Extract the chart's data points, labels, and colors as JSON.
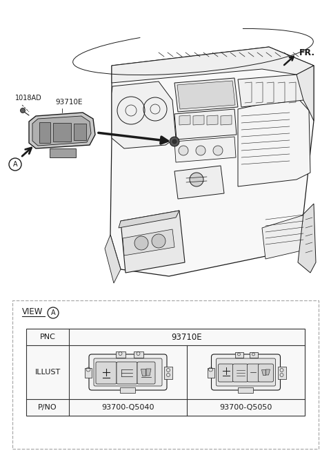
{
  "bg_color": "#ffffff",
  "line_color": "#1a1a1a",
  "label_1018AD": "1018AD",
  "label_93710E_top": "93710E",
  "label_FR": "FR.",
  "label_VIEW": "VIEW",
  "label_A": "A",
  "label_PNC": "PNC",
  "label_PNC_val": "93710E",
  "label_ILLUST": "ILLUST",
  "label_PNO": "P/NO",
  "label_pno1": "93700-Q5040",
  "label_pno2": "93700-Q5050",
  "dash_border_color": "#aaaaaa",
  "table_line_color": "#333333",
  "gray_switch": "#888888",
  "gray_switch_face": "#bbbbbb"
}
